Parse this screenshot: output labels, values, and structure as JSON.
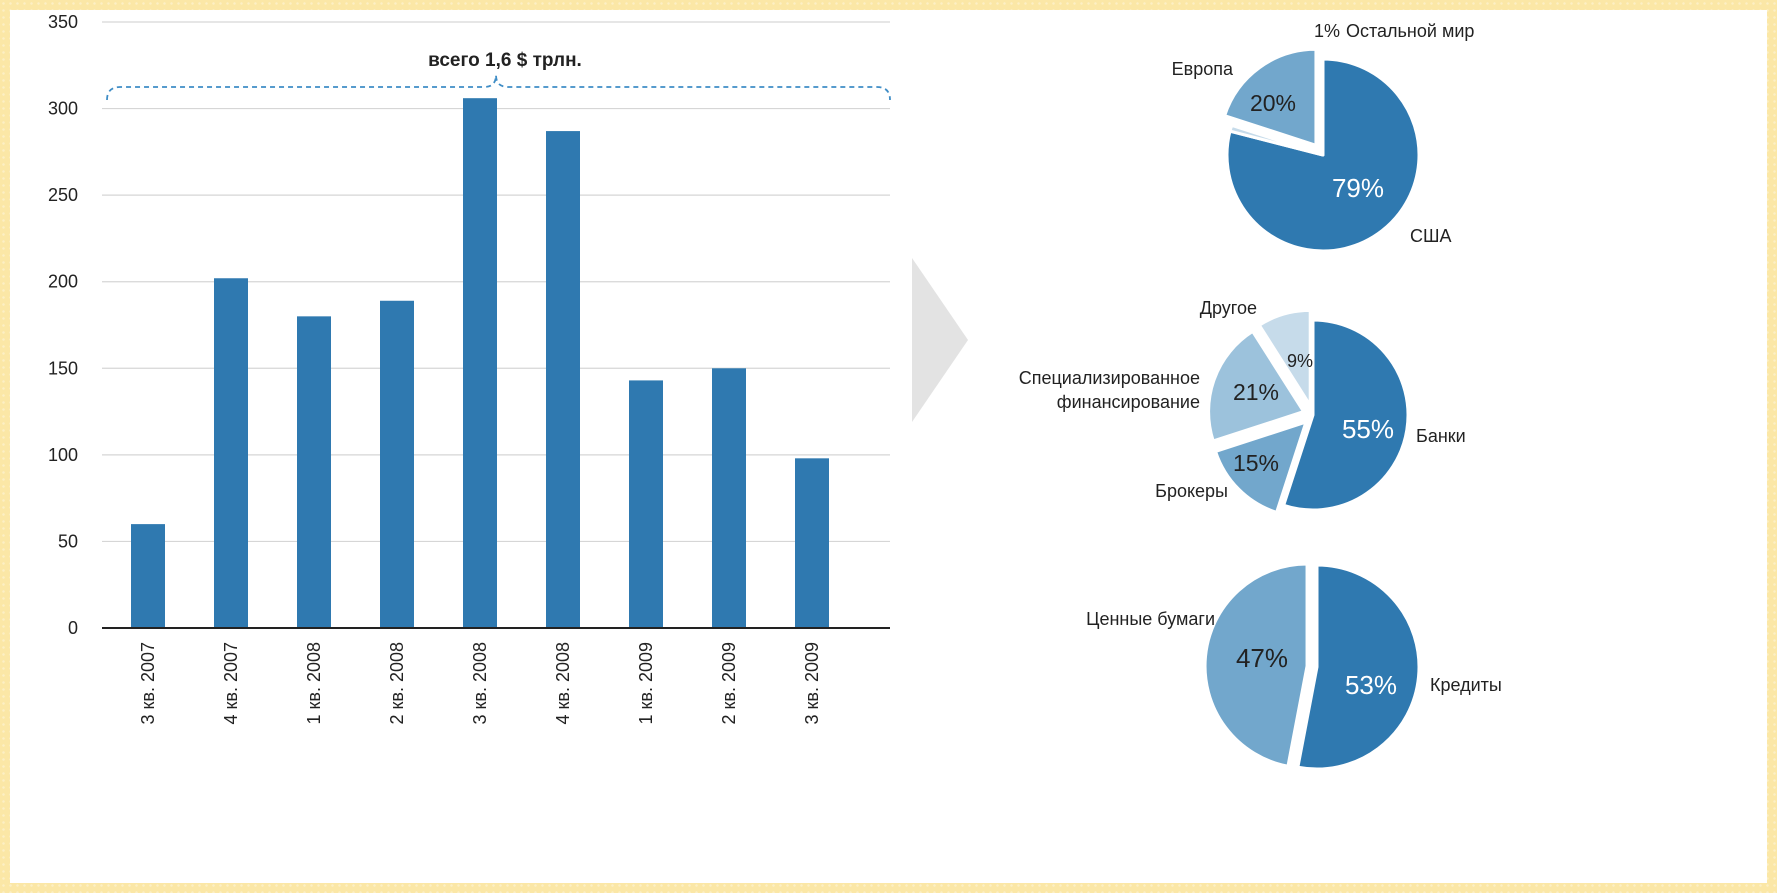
{
  "colors": {
    "dark": "#2f79b0",
    "medium": "#72a7cc",
    "light": "#9cc2dc",
    "lighter": "#c6dbea",
    "axis": "#222222",
    "grid": "#d6d6d6",
    "bracket": "#3f8dc6",
    "arrow": "#e3e3e3"
  },
  "chart_data": [
    {
      "type": "bar",
      "categories": [
        "3 кв. 2007",
        "4 кв. 2007",
        "1 кв. 2008",
        "2 кв. 2008",
        "3 кв. 2008",
        "4 кв. 2008",
        "1 кв. 2009",
        "2 кв. 2009",
        "3 кв. 2009"
      ],
      "values": [
        60,
        202,
        180,
        189,
        306,
        287,
        143,
        150,
        98
      ],
      "ylim": [
        0,
        350
      ],
      "yticks": [
        0,
        50,
        100,
        150,
        200,
        250,
        300,
        350
      ],
      "grid": true,
      "annotation": "всего 1,6  $ трлн."
    },
    {
      "type": "pie",
      "slices": [
        {
          "label": "США",
          "value": 79,
          "value_label": "79%",
          "color": "dark"
        },
        {
          "label": "Остальной мир",
          "value": 1,
          "value_label": "1%",
          "color": "lighter"
        },
        {
          "label": "Европа",
          "value": 20,
          "value_label": "20%",
          "color": "medium"
        }
      ]
    },
    {
      "type": "pie",
      "slices": [
        {
          "label": "Банки",
          "value": 55,
          "value_label": "55%",
          "color": "dark"
        },
        {
          "label": "Брокеры",
          "value": 15,
          "value_label": "15%",
          "color": "medium"
        },
        {
          "label": "Специализированное финансирование",
          "label_lines": [
            "Специализированное",
            "финансирование"
          ],
          "value": 21,
          "value_label": "21%",
          "color": "light"
        },
        {
          "label": "Другое",
          "value": 9,
          "value_label": "9%",
          "color": "lighter"
        }
      ]
    },
    {
      "type": "pie",
      "slices": [
        {
          "label": "Кредиты",
          "value": 53,
          "value_label": "53%",
          "color": "dark"
        },
        {
          "label": "Ценные бумаги",
          "value": 47,
          "value_label": "47%",
          "color": "medium"
        }
      ]
    }
  ]
}
